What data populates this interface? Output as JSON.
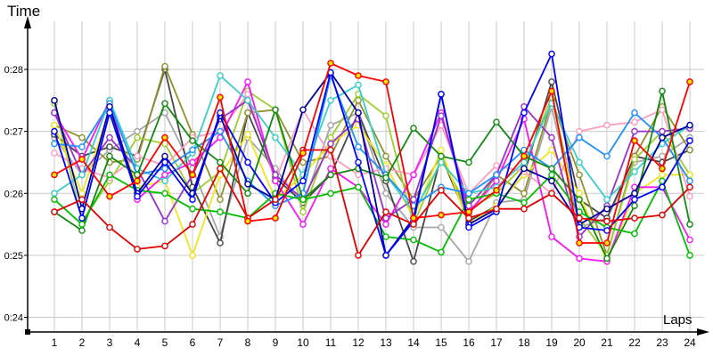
{
  "chart_data": {
    "type": "line",
    "title": "",
    "ylabel": "Time",
    "xlabel": "Laps",
    "grid": true,
    "legend_position": "none",
    "x": [
      1,
      2,
      3,
      4,
      5,
      6,
      7,
      8,
      9,
      10,
      11,
      12,
      13,
      14,
      15,
      16,
      17,
      18,
      19,
      20,
      21,
      22,
      23,
      24
    ],
    "ytick_values": [
      24,
      25,
      26,
      27,
      28
    ],
    "ytick_labels": [
      "0:24",
      "0:25",
      "0:26",
      "0:27",
      "0:28"
    ],
    "ylim": [
      23.75,
      28.8
    ],
    "marker_style": "open-circle",
    "series": [
      {
        "name": "gray",
        "color": "#A6A6A6",
        "marker_fill": "#ffffff",
        "values": [
          26.9,
          26.3,
          26.7,
          27.0,
          27.3,
          26.4,
          25.3,
          26.9,
          26.4,
          25.8,
          27.1,
          27.3,
          26.0,
          25.45,
          25.45,
          24.9,
          25.85,
          25.9,
          27.4,
          25.45,
          25.6,
          26.5,
          26.6,
          26.9
        ]
      },
      {
        "name": "dark-gray",
        "color": "#474747",
        "marker_fill": "#ffffff",
        "values": [
          26.95,
          26.6,
          26.75,
          26.6,
          28.0,
          26.1,
          25.2,
          27.3,
          26.25,
          25.85,
          26.3,
          27.3,
          26.2,
          24.9,
          26.6,
          25.55,
          25.8,
          26.3,
          27.8,
          25.9,
          25.6,
          26.6,
          26.5,
          26.7
        ]
      },
      {
        "name": "olive-khaki",
        "color": "#90902E",
        "marker_fill": "#ffffff",
        "values": [
          27.1,
          26.9,
          26.5,
          26.55,
          28.05,
          26.95,
          25.9,
          27.3,
          27.35,
          26.5,
          26.6,
          27.5,
          26.6,
          25.9,
          26.6,
          25.65,
          26.3,
          26.0,
          27.5,
          26.3,
          25.0,
          26.6,
          27.4,
          26.7
        ]
      },
      {
        "name": "yellow-green",
        "color": "#9FCE30",
        "marker_fill": "#ffffff",
        "values": [
          27.45,
          25.55,
          26.2,
          26.9,
          26.8,
          26.0,
          26.35,
          27.65,
          27.35,
          25.7,
          26.9,
          27.6,
          27.25,
          25.5,
          26.55,
          25.75,
          26.0,
          26.45,
          27.55,
          25.6,
          25.0,
          26.55,
          27.0,
          26.3
        ]
      },
      {
        "name": "yellow",
        "color": "#EFE61C",
        "marker_fill": "#ffffff",
        "values": [
          27.1,
          26.0,
          27.35,
          26.1,
          26.2,
          25.0,
          26.3,
          26.95,
          25.9,
          26.3,
          26.8,
          27.1,
          26.45,
          25.6,
          26.7,
          25.5,
          25.8,
          26.3,
          26.7,
          26.0,
          24.9,
          26.0,
          26.3,
          26.3
        ]
      },
      {
        "name": "pink",
        "color": "#FF9DBE",
        "marker_fill": "#ffffff",
        "values": [
          26.65,
          26.4,
          26.25,
          26.6,
          26.45,
          26.9,
          27.0,
          27.6,
          26.2,
          27.35,
          26.6,
          26.3,
          26.4,
          26.3,
          27.1,
          26.0,
          26.45,
          26.35,
          26.0,
          27.0,
          27.1,
          27.15,
          27.35,
          25.95
        ]
      },
      {
        "name": "magenta",
        "color": "#FA14FA",
        "marker_fill": "#ffffff",
        "values": [
          27.3,
          26.55,
          27.5,
          25.9,
          26.3,
          26.5,
          26.9,
          27.8,
          26.2,
          25.5,
          26.4,
          26.1,
          25.5,
          26.3,
          27.3,
          25.7,
          26.2,
          27.2,
          25.3,
          24.95,
          24.9,
          26.1,
          26.1,
          25.25
        ]
      },
      {
        "name": "violet",
        "color": "#9932CC",
        "marker_fill": "#ffffff",
        "values": [
          27.3,
          26.3,
          26.9,
          26.4,
          25.55,
          26.3,
          27.2,
          27.5,
          26.3,
          25.9,
          26.8,
          27.2,
          25.6,
          25.9,
          27.25,
          25.8,
          26.3,
          27.4,
          26.9,
          25.3,
          25.8,
          27.0,
          27.0,
          27.05
        ]
      },
      {
        "name": "turquoise",
        "color": "#38CFC9",
        "marker_fill": "#ffffff",
        "values": [
          26.0,
          26.3,
          27.5,
          26.4,
          26.2,
          26.65,
          27.9,
          27.5,
          26.9,
          26.3,
          27.5,
          27.75,
          26.3,
          25.7,
          26.5,
          26.0,
          26.1,
          26.5,
          27.45,
          26.5,
          25.9,
          26.35,
          26.8,
          27.1
        ]
      },
      {
        "name": "light-blue",
        "color": "#1E90FF",
        "marker_fill": "#ffffff",
        "values": [
          26.8,
          26.75,
          27.45,
          26.3,
          26.4,
          26.7,
          27.0,
          26.2,
          25.8,
          26.0,
          27.9,
          26.75,
          26.3,
          25.8,
          26.1,
          26.0,
          26.3,
          26.7,
          26.4,
          26.9,
          26.6,
          27.3,
          26.9,
          26.2
        ]
      },
      {
        "name": "dark-green",
        "color": "#128A12",
        "marker_fill": "#ffffff",
        "values": [
          25.7,
          25.4,
          26.6,
          26.3,
          27.45,
          26.85,
          26.5,
          26.0,
          27.35,
          25.9,
          26.3,
          26.4,
          26.25,
          27.05,
          26.6,
          26.5,
          27.15,
          26.6,
          26.4,
          25.9,
          24.95,
          25.8,
          27.65,
          25.5
        ]
      },
      {
        "name": "green",
        "color": "#00BE00",
        "marker_fill": "#ffffff",
        "values": [
          25.9,
          25.5,
          26.3,
          26.05,
          26.0,
          25.75,
          25.7,
          25.6,
          26.0,
          25.9,
          26.0,
          26.1,
          25.3,
          25.25,
          25.05,
          25.9,
          26.0,
          25.85,
          26.3,
          25.7,
          25.45,
          25.35,
          26.2,
          25.0
        ]
      },
      {
        "name": "navy",
        "color": "#0000A0",
        "marker_fill": "#ffffff",
        "values": [
          27.5,
          25.75,
          27.4,
          26.0,
          26.6,
          26.0,
          27.25,
          26.15,
          25.9,
          27.35,
          27.95,
          27.3,
          25.0,
          25.6,
          27.6,
          25.5,
          25.75,
          26.4,
          26.2,
          25.5,
          25.75,
          26.0,
          26.9,
          27.1
        ]
      },
      {
        "name": "blue",
        "color": "#0000FF",
        "marker_fill": "#ffffff",
        "values": [
          27.0,
          25.6,
          27.3,
          25.95,
          26.5,
          25.9,
          27.3,
          26.5,
          25.85,
          26.2,
          27.95,
          26.5,
          25.0,
          25.55,
          27.6,
          25.45,
          25.7,
          27.3,
          28.25,
          25.45,
          25.4,
          25.9,
          26.1,
          26.85
        ]
      },
      {
        "name": "dark-red",
        "color": "#E00000",
        "marker_fill": "#ffffff",
        "values": [
          25.7,
          25.9,
          25.45,
          25.1,
          25.15,
          25.5,
          26.4,
          25.6,
          25.9,
          26.7,
          26.7,
          25.0,
          25.7,
          25.5,
          26.05,
          25.6,
          25.75,
          25.75,
          26.0,
          25.6,
          25.55,
          25.6,
          25.65,
          26.1
        ]
      },
      {
        "name": "red",
        "color": "#FF0000",
        "marker_fill": "#FFE400",
        "values": [
          26.3,
          26.55,
          25.95,
          26.2,
          26.9,
          26.3,
          27.55,
          25.55,
          25.6,
          26.65,
          28.1,
          27.9,
          27.8,
          25.6,
          25.65,
          25.7,
          26.05,
          26.6,
          27.65,
          25.2,
          25.2,
          26.85,
          26.4,
          27.8
        ]
      }
    ]
  },
  "colors": {
    "background": "#ffffff",
    "grid": "#C9C9C9",
    "axis": "#000000",
    "tick_text": "#000000"
  }
}
